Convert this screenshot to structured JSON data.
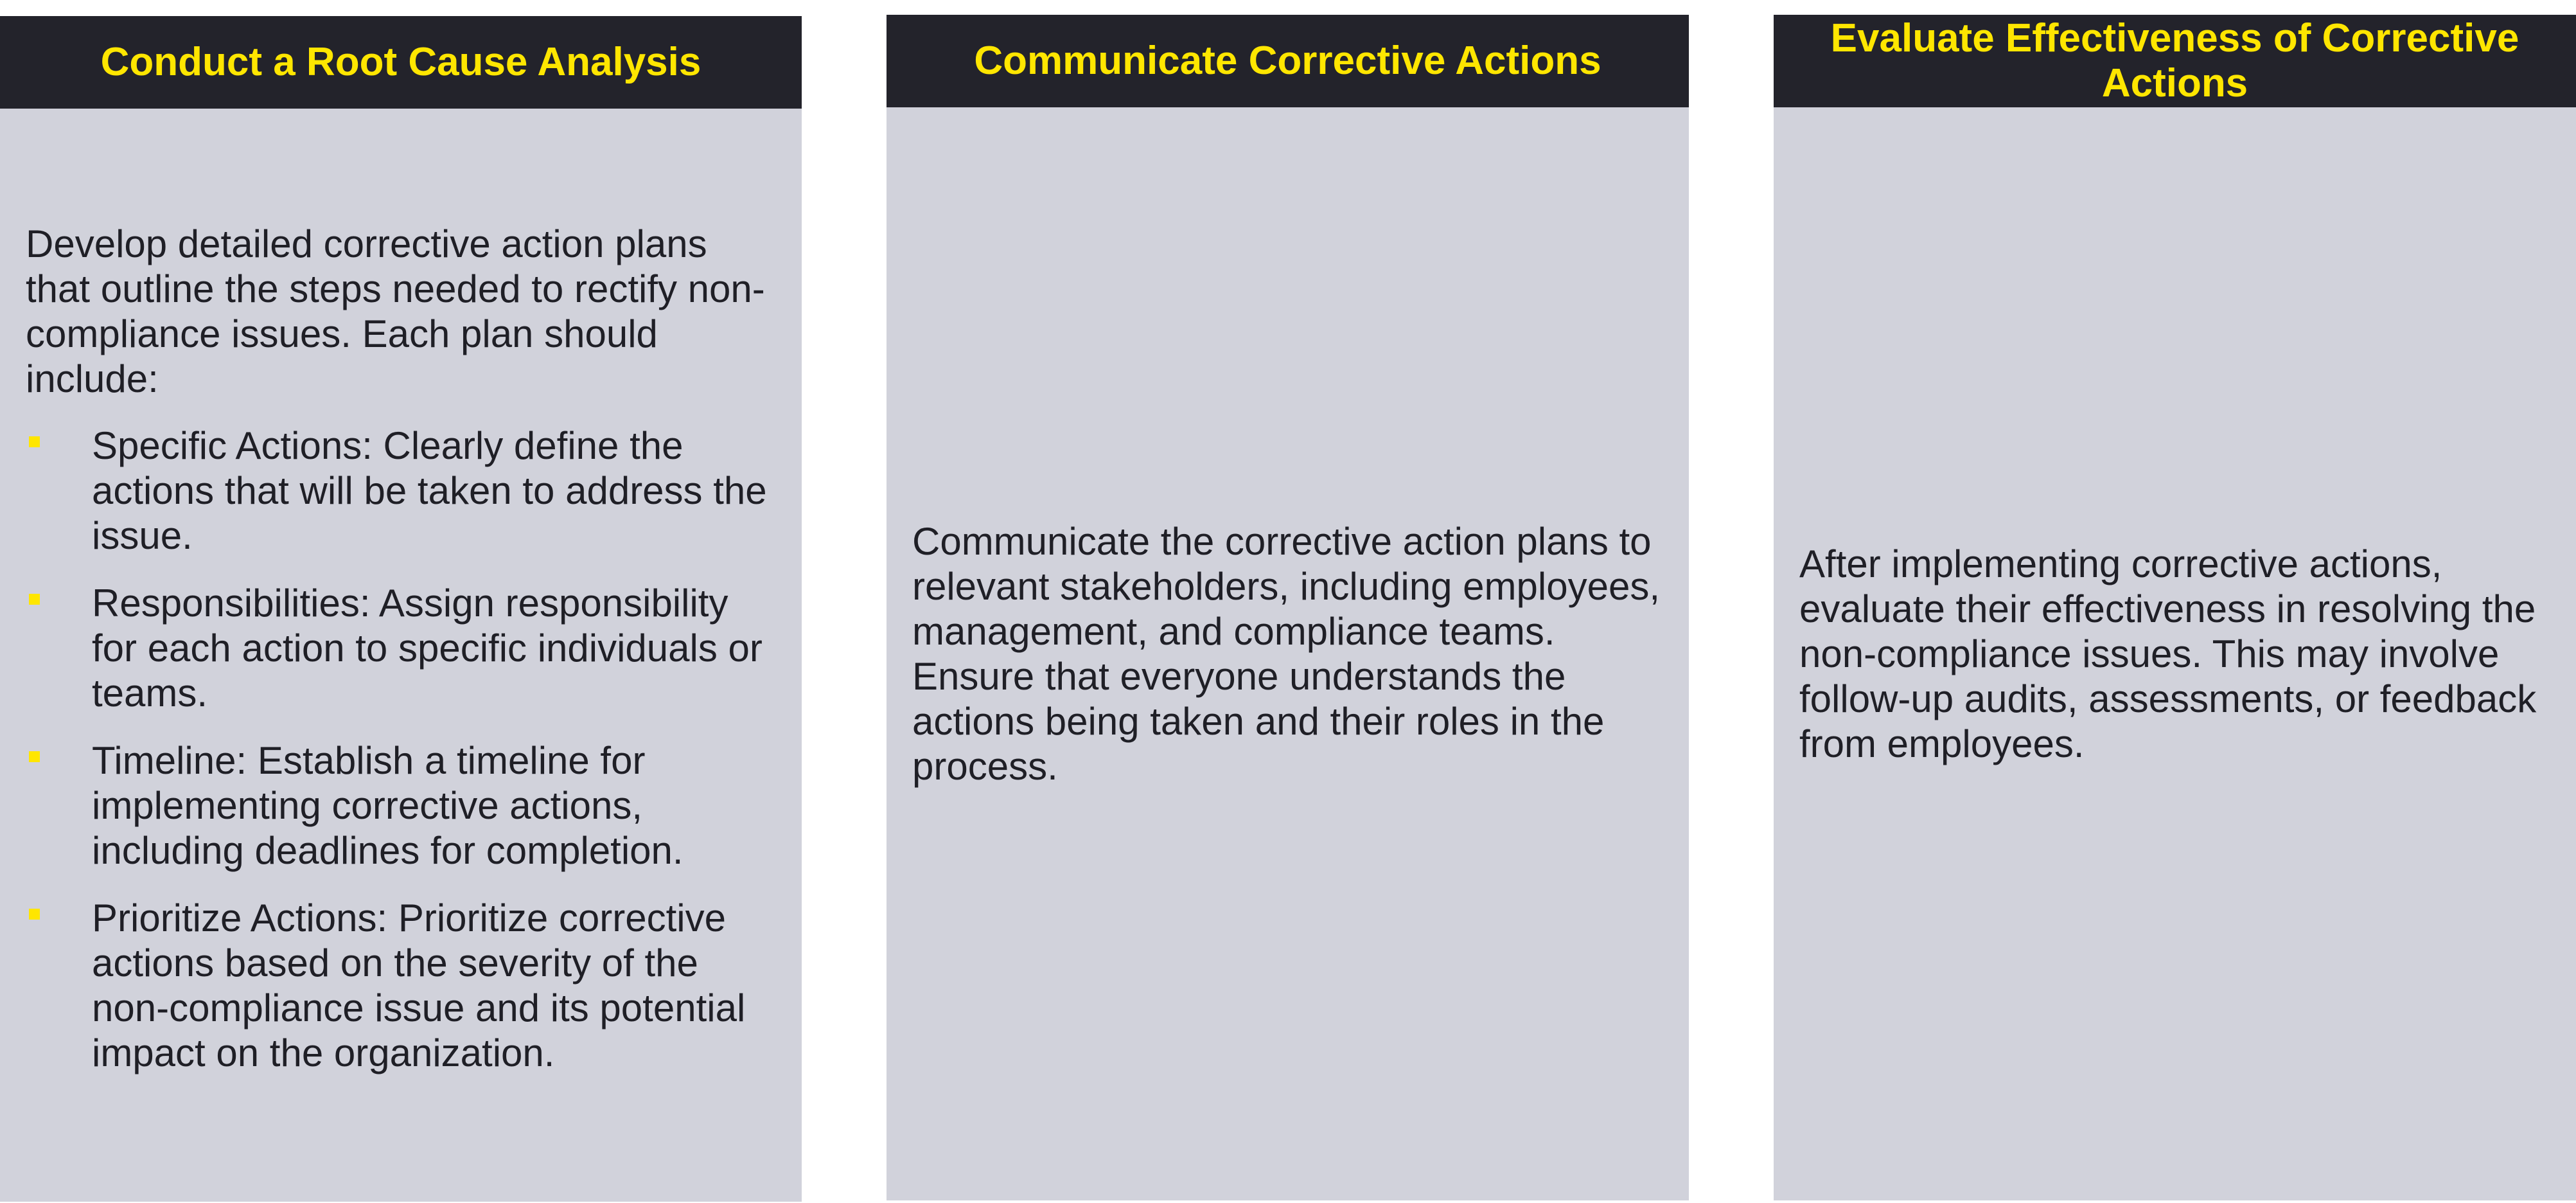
{
  "panels": [
    {
      "title": "Conduct a Root Cause Analysis",
      "intro": "Develop detailed corrective action plans that outline the steps needed to rectify non-compliance issues. Each plan should include:",
      "bullets": [
        "Specific Actions: Clearly define the actions that will be taken to address the issue.",
        "Responsibilities: Assign responsibility for each action to specific individuals or teams.",
        "Timeline: Establish a timeline for implementing corrective actions, including deadlines for completion.",
        "Prioritize Actions: Prioritize corrective actions based on the severity of the non-compliance issue and its potential impact on the organization."
      ]
    },
    {
      "title": "Communicate Corrective Actions",
      "body": "Communicate the corrective action plans to relevant stakeholders, including employees, management, and compliance teams. Ensure that everyone understands the actions being taken and their roles in the process."
    },
    {
      "title": "Evaluate Effectiveness of Corrective Actions",
      "body": "After implementing corrective actions, evaluate their effectiveness in resolving the non-compliance issues. This may involve follow-up audits, assessments, or feedback from employees."
    }
  ],
  "colors": {
    "header_bg": "#23232b",
    "header_text": "#ffe600",
    "panel_bg": "#d1d2db",
    "body_text": "#1f1f26",
    "bullet": "#ffe600"
  }
}
